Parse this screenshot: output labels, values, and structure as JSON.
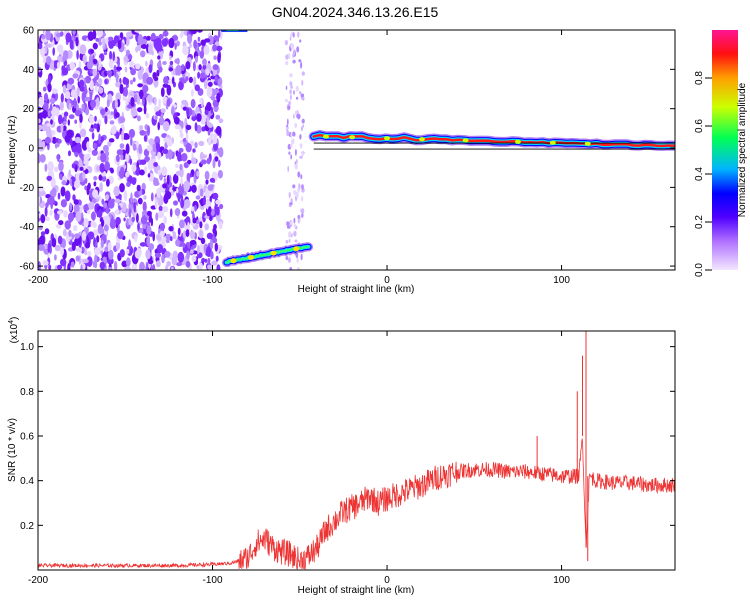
{
  "figure": {
    "title": "GN04.2024.346.13.26.E15"
  },
  "chart_data": [
    {
      "type": "heatmap",
      "xlabel": "Height of straight line (km)",
      "ylabel": "Frequency (Hz)",
      "xlim": [
        -200,
        165
      ],
      "ylim": [
        -62,
        60
      ],
      "xticks": [
        -200,
        -100,
        0,
        100
      ],
      "yticks": [
        -60,
        -40,
        -20,
        0,
        20,
        40,
        60
      ],
      "colorbar": {
        "label": "Normalized spectral amplitude",
        "range": [
          0.0,
          1.0
        ],
        "ticks": [
          "0.0",
          "0.2",
          "0.4",
          "0.6",
          "0.8"
        ],
        "colors": [
          "#f3e6ff",
          "#7b00ff",
          "#0000ff",
          "#00c8ff",
          "#00ff66",
          "#ccff00",
          "#ff9900",
          "#ff0000",
          "#ff1493"
        ]
      },
      "features": [
        {
          "kind": "broadband noise",
          "x_range": [
            -200,
            -95
          ],
          "f_range": [
            -62,
            60
          ]
        },
        {
          "kind": "narrow band",
          "x_range": [
            -92,
            -45
          ],
          "f_start": -58,
          "f_end": -50
        },
        {
          "kind": "dominant line",
          "x_range": [
            -42,
            165
          ],
          "f_start": 6,
          "f_end": 1
        }
      ]
    },
    {
      "type": "line",
      "xlabel": "Height of straight line (km)",
      "ylabel": "SNR (10 * v/v)",
      "yscale_label": "(x10",
      "yscale_exp": "4",
      "xlim": [
        -200,
        165
      ],
      "ylim": [
        0.0,
        1.07
      ],
      "xticks": [
        -200,
        -100,
        0,
        100
      ],
      "yticks": [
        0.2,
        0.4,
        0.6,
        0.8,
        1.0
      ],
      "color": "#ee3333",
      "series": [
        {
          "x": [
            -200,
            -180,
            -160,
            -140,
            -120,
            -100,
            -90,
            -80,
            -75,
            -70,
            -65,
            -60,
            -55,
            -50,
            -45,
            -40,
            -35,
            -30,
            -25,
            -20,
            -15,
            -10,
            -5,
            0,
            10,
            20,
            30,
            40,
            50,
            60,
            70,
            80,
            90,
            100,
            105,
            110,
            112,
            114,
            116,
            120,
            130,
            140,
            150,
            165
          ],
          "y": [
            0.02,
            0.02,
            0.02,
            0.02,
            0.02,
            0.025,
            0.03,
            0.05,
            0.12,
            0.14,
            0.1,
            0.08,
            0.07,
            0.04,
            0.06,
            0.1,
            0.18,
            0.22,
            0.26,
            0.28,
            0.3,
            0.33,
            0.3,
            0.32,
            0.35,
            0.38,
            0.42,
            0.44,
            0.45,
            0.45,
            0.44,
            0.44,
            0.43,
            0.42,
            0.42,
            0.42,
            0.6,
            0.1,
            0.42,
            0.4,
            0.39,
            0.39,
            0.38,
            0.38
          ]
        }
      ],
      "spikes": [
        {
          "x": 114,
          "y": 1.07
        },
        {
          "x": 112,
          "y": 0.96
        },
        {
          "x": 109,
          "y": 0.8
        },
        {
          "x": 86,
          "y": 0.6
        }
      ]
    }
  ]
}
